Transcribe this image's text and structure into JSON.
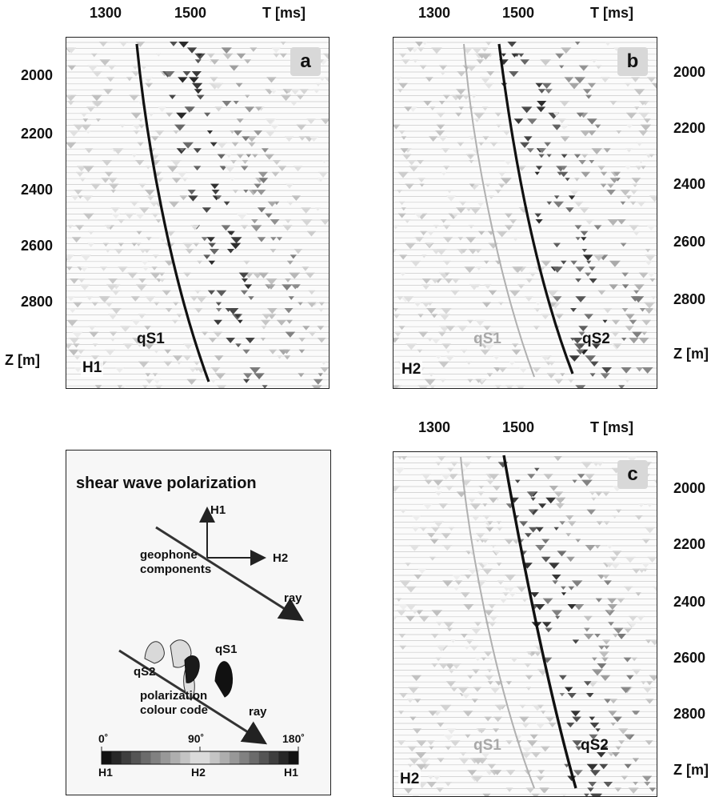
{
  "panels": {
    "a": {
      "letter": "a",
      "component": "H1",
      "x_ticks": [
        "1300",
        "1500"
      ],
      "x_unit": "T [ms]",
      "y_ticks": [
        "2000",
        "2200",
        "2400",
        "2600",
        "2800"
      ],
      "y_unit": "Z [m]",
      "waves": [
        {
          "label": "qS1",
          "color": "#111111"
        }
      ]
    },
    "b": {
      "letter": "b",
      "component": "H2",
      "x_ticks": [
        "1300",
        "1500"
      ],
      "x_unit": "T [ms]",
      "y_ticks": [
        "2000",
        "2200",
        "2400",
        "2600",
        "2800"
      ],
      "y_unit": "Z [m]",
      "waves": [
        {
          "label": "qS1",
          "color": "#b0b0b0"
        },
        {
          "label": "qS2",
          "color": "#111111"
        }
      ]
    },
    "c": {
      "letter": "c",
      "component": "H2",
      "x_ticks": [
        "1300",
        "1500"
      ],
      "x_unit": "T [ms]",
      "y_ticks": [
        "2000",
        "2200",
        "2400",
        "2600",
        "2800"
      ],
      "y_unit": "Z [m]",
      "waves": [
        {
          "label": "qS1",
          "color": "#b0b0b0"
        },
        {
          "label": "qS2",
          "color": "#111111"
        }
      ]
    }
  },
  "legend": {
    "title": "shear  wave  polarization",
    "axis_h1": "H1",
    "axis_h2": "H2",
    "geophone_label_1": "geophone",
    "geophone_label_2": "components",
    "ray_label_1": "ray",
    "ray_label_2": "ray",
    "qs1_label": "qS1",
    "qs2_label": "qS2",
    "polarization_label_1": "polarization",
    "polarization_label_2": "colour  code",
    "scale_0": "0˚",
    "scale_90": "90˚",
    "scale_180": "180˚",
    "scale_h1_left": "H1",
    "scale_h2_mid": "H2",
    "scale_h1_right": "H1",
    "colors": {
      "h1": "#111111",
      "h2": "#e6e6e6"
    }
  }
}
